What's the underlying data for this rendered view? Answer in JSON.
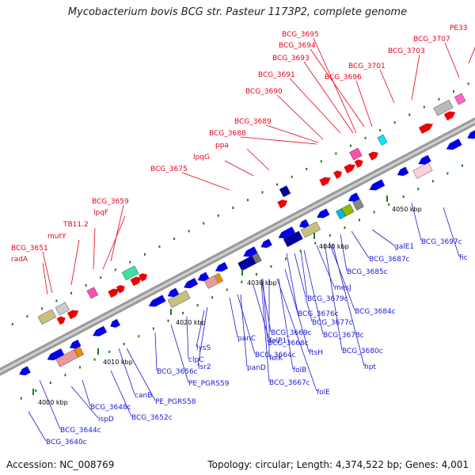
{
  "title": "Mycobacterium bovis BCG str. Pasteur 1173P2, complete genome",
  "footer": {
    "accession": "Accession: NC_008769",
    "summary": "Topology: circular; Length: 4,374,522 bp; Genes: 4,001"
  },
  "colors": {
    "forward_label": "#e8001c",
    "reverse_label": "#1a1ad6",
    "backbone": "#8c8c8c",
    "kbp_tick": "#1e7a1e"
  },
  "kbp_ticks": [
    "4000 kbp",
    "4010 kbp",
    "4020 kbp",
    "4030 kbp",
    "4040 kbp",
    "4050 kbp"
  ],
  "forward_labels": [
    "radA",
    "BCG_3651",
    "mutY",
    "TB11.2",
    "lpqF",
    "BCG_3659",
    "BCG_3675",
    "lpqG",
    "ppa",
    "BCG_3688",
    "BCG_3689",
    "BCG_3690",
    "BCG_3691",
    "BCG_3693",
    "BCG_3694",
    "BCG_3695",
    "BCG_3696",
    "BCG_3701",
    "BCG_3703",
    "BCG_3707",
    "PE33"
  ],
  "reverse_labels": [
    "BCG_3640c",
    "BCG_3644c",
    "ispD",
    "BCG_3648c",
    "canB",
    "BCG_3652c",
    "PE_PGRS58",
    "BCG_3656c",
    "PE_PGRS59",
    "clpC",
    "lysS",
    "lsr2",
    "panC",
    "BCG_3664c",
    "panD",
    "folP1",
    "BCG_3669c",
    "BCG_3668c",
    "folK",
    "BCG_3667c",
    "folB",
    "ftsH",
    "folE",
    "BCG_3676c",
    "BCG_3677c",
    "BCG_3679c",
    "BCG_3678c",
    "mesJ",
    "BCG_3684c",
    "BCG_3680c",
    "hpt",
    "BCG_3685c",
    "BCG_3687c",
    "galE1",
    "BCG_3697c",
    "fic"
  ]
}
